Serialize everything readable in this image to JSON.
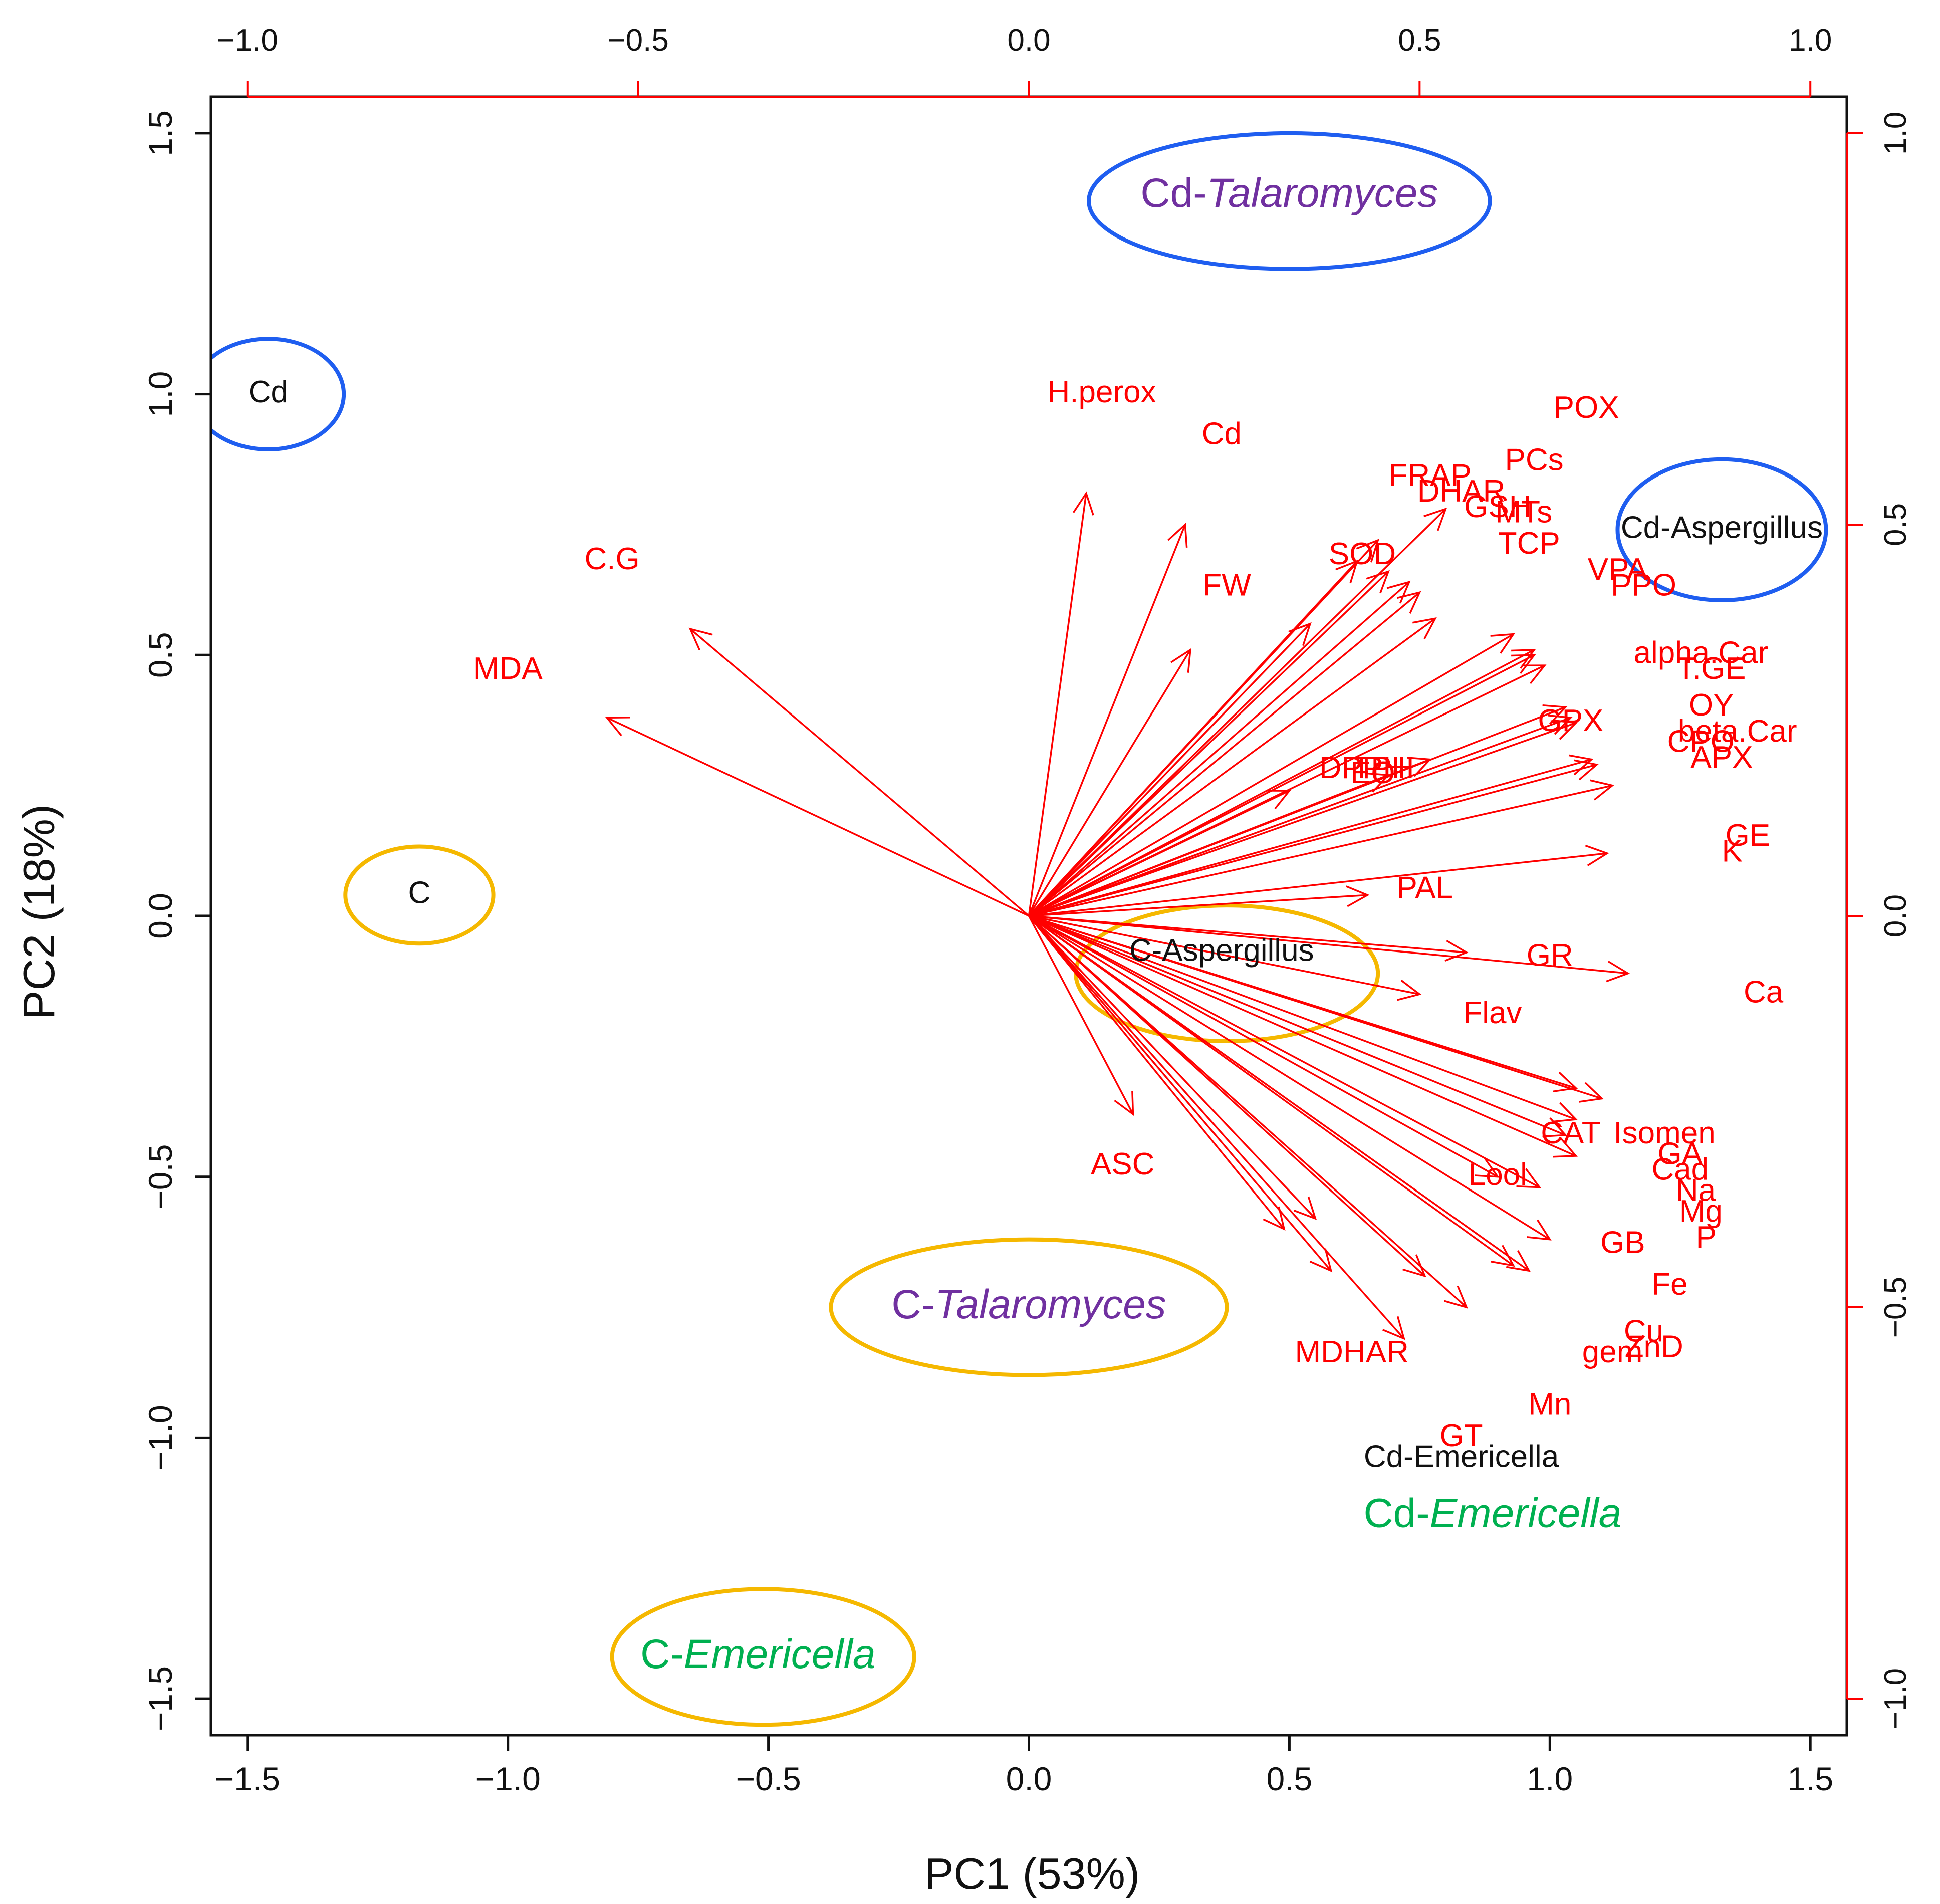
{
  "chart_data": {
    "type": "scatter",
    "subtype": "PCA biplot",
    "xlabel": "PC1 (53%)",
    "ylabel": "PC2 (18%)",
    "xlim": [
      -1.57,
      1.57
    ],
    "ylim": [
      -1.57,
      1.57
    ],
    "x_ticks": [
      -1.5,
      -1.0,
      -0.5,
      0.0,
      0.5,
      1.0,
      1.5
    ],
    "x_tick_labels": [
      "−1.5",
      "−1.0",
      "−0.5",
      "0.0",
      "0.5",
      "1.0",
      "1.5"
    ],
    "y_ticks": [
      -1.5,
      -1.0,
      -0.5,
      0.0,
      0.5,
      1.0,
      1.5
    ],
    "y_tick_labels": [
      "−1.5",
      "−1.0",
      "−0.5",
      "0.0",
      "0.5",
      "1.0",
      "1.5"
    ],
    "top_axis_ticks": [
      -1.0,
      -0.5,
      0.0,
      0.5,
      1.0
    ],
    "top_axis_tick_labels": [
      "−1.0",
      "−0.5",
      "0.0",
      "0.5",
      "1.0"
    ],
    "right_axis_ticks": [
      -1.0,
      -0.5,
      0.0,
      0.5,
      1.0
    ],
    "right_axis_tick_labels": [
      "−1.0",
      "−0.5",
      "0.0",
      "0.5",
      "1.0"
    ],
    "loading_scale": 1.5,
    "scores": [
      {
        "label": "Cd",
        "x": -1.46,
        "y": 1.0
      },
      {
        "label": "C",
        "x": -1.17,
        "y": 0.04
      },
      {
        "label": "C-Aspergillus",
        "x": 0.37,
        "y": -0.07
      },
      {
        "label": "Cd-Aspergillus",
        "x": 1.33,
        "y": 0.74
      },
      {
        "label": "Cd-Emericella",
        "x": 0.83,
        "y": -1.04
      }
    ],
    "group_labels": [
      {
        "prefix": "Cd-",
        "genus": "Talaromyces",
        "x": 0.5,
        "y": 1.38,
        "color": "#7030a0"
      },
      {
        "prefix": "C-",
        "genus": "Talaromyces",
        "x": 0.0,
        "y": -0.75,
        "color": "#7030a0"
      },
      {
        "prefix": "C-",
        "genus": "Emericella",
        "x": -0.52,
        "y": -1.42,
        "color": "#00b050"
      },
      {
        "prefix": "Cd-",
        "genus": "Emericella",
        "x": 0.89,
        "y": -1.15,
        "color": "#00b050"
      }
    ],
    "ellipses": [
      {
        "cx": 0.5,
        "cy": 1.37,
        "rx": 0.385,
        "ry": 0.13,
        "color": "#1f5ef0"
      },
      {
        "cx": -1.46,
        "cy": 1.0,
        "rx": 0.145,
        "ry": 0.106,
        "color": "#1f5ef0"
      },
      {
        "cx": 1.33,
        "cy": 0.74,
        "rx": 0.2,
        "ry": 0.135,
        "color": "#1f5ef0"
      },
      {
        "cx": -1.17,
        "cy": 0.04,
        "rx": 0.142,
        "ry": 0.093,
        "color": "#f5b800"
      },
      {
        "cx": 0.38,
        "cy": -0.11,
        "rx": 0.29,
        "ry": 0.13,
        "color": "#f5b800"
      },
      {
        "cx": 0.0,
        "cy": -0.75,
        "rx": 0.38,
        "ry": 0.13,
        "color": "#f5b800"
      },
      {
        "cx": -0.51,
        "cy": -1.42,
        "rx": 0.29,
        "ry": 0.13,
        "color": "#f5b800"
      }
    ],
    "arrow_color": "#ff0000",
    "loadings": [
      {
        "label": "H.perox",
        "x": 0.11,
        "y": 0.81,
        "lx": 0.14,
        "ly": 1.0
      },
      {
        "label": "Cd",
        "x": 0.3,
        "y": 0.75,
        "lx": 0.37,
        "ly": 0.92
      },
      {
        "label": "FW",
        "x": 0.31,
        "y": 0.51,
        "lx": 0.38,
        "ly": 0.63
      },
      {
        "label": "C.G",
        "x": -0.65,
        "y": 0.55,
        "lx": -0.8,
        "ly": 0.68
      },
      {
        "label": "MDA",
        "x": -0.81,
        "y": 0.38,
        "lx": -1.0,
        "ly": 0.47
      },
      {
        "label": "SOD",
        "x": 0.54,
        "y": 0.56,
        "lx": 0.64,
        "ly": 0.69
      },
      {
        "label": "FRAP",
        "x": 0.63,
        "y": 0.68,
        "lx": 0.77,
        "ly": 0.84
      },
      {
        "label": "DHAR",
        "x": 0.69,
        "y": 0.66,
        "lx": 0.83,
        "ly": 0.81
      },
      {
        "label": "PCs",
        "x": 0.8,
        "y": 0.78,
        "lx": 0.97,
        "ly": 0.87
      },
      {
        "label": "GSH",
        "x": 0.73,
        "y": 0.64,
        "lx": 0.9,
        "ly": 0.78
      },
      {
        "label": "MTs",
        "x": 0.75,
        "y": 0.62,
        "lx": 0.95,
        "ly": 0.77
      },
      {
        "label": "TCP",
        "x": 0.78,
        "y": 0.57,
        "lx": 0.96,
        "ly": 0.71
      },
      {
        "label": "POX",
        "x": 0.67,
        "y": 0.72,
        "lx": 1.07,
        "ly": 0.97
      },
      {
        "label": "VPA",
        "x": 0.93,
        "y": 0.54,
        "lx": 1.13,
        "ly": 0.66
      },
      {
        "label": "PPO",
        "x": 0.97,
        "y": 0.51,
        "lx": 1.18,
        "ly": 0.63
      },
      {
        "label": "alpha.Car",
        "x": 0.97,
        "y": 0.5,
        "lx": 1.29,
        "ly": 0.5
      },
      {
        "label": "T.GE",
        "x": 0.99,
        "y": 0.48,
        "lx": 1.31,
        "ly": 0.47
      },
      {
        "label": "OY",
        "x": 1.03,
        "y": 0.4,
        "lx": 1.31,
        "ly": 0.4
      },
      {
        "label": "beta.Car",
        "x": 1.04,
        "y": 0.38,
        "lx": 1.36,
        "ly": 0.35
      },
      {
        "label": "CPO",
        "x": 1.05,
        "y": 0.37,
        "lx": 1.29,
        "ly": 0.33
      },
      {
        "label": "APX",
        "x": 1.08,
        "y": 0.3,
        "lx": 1.33,
        "ly": 0.3
      },
      {
        "label": "GPX",
        "x": 1.09,
        "y": 0.29,
        "lx": 1.04,
        "ly": 0.37
      },
      {
        "label": "DPPH",
        "x": 0.77,
        "y": 0.3,
        "lx": 0.64,
        "ly": 0.28
      },
      {
        "label": "EO",
        "x": 0.69,
        "y": 0.27,
        "lx": 0.66,
        "ly": 0.27
      },
      {
        "label": "TPH",
        "x": 0.5,
        "y": 0.24,
        "lx": 0.68,
        "ly": 0.28
      },
      {
        "label": "GE",
        "x": 1.12,
        "y": 0.25,
        "lx": 1.38,
        "ly": 0.15
      },
      {
        "label": "K",
        "x": 1.11,
        "y": 0.12,
        "lx": 1.35,
        "ly": 0.12
      },
      {
        "label": "PAL",
        "x": 0.65,
        "y": 0.04,
        "lx": 0.76,
        "ly": 0.05
      },
      {
        "label": "GR",
        "x": 1.15,
        "y": -0.11,
        "lx": 1.0,
        "ly": -0.08
      },
      {
        "label": "Flav",
        "x": 0.84,
        "y": -0.07,
        "lx": 0.89,
        "ly": -0.19
      },
      {
        "label": "Ca",
        "x": 0.75,
        "y": -0.15,
        "lx": 1.41,
        "ly": -0.15
      },
      {
        "label": "CAT",
        "x": 1.05,
        "y": -0.33,
        "lx": 1.04,
        "ly": -0.42
      },
      {
        "label": "Isomen",
        "x": 1.1,
        "y": -0.35,
        "lx": 1.22,
        "ly": -0.42
      },
      {
        "label": "GA",
        "x": 1.05,
        "y": -0.39,
        "lx": 1.25,
        "ly": -0.46
      },
      {
        "label": "Cad",
        "x": 1.03,
        "y": -0.42,
        "lx": 1.25,
        "ly": -0.49
      },
      {
        "label": "Na",
        "x": 1.05,
        "y": -0.46,
        "lx": 1.28,
        "ly": -0.53
      },
      {
        "label": "Mg",
        "x": 0.98,
        "y": -0.52,
        "lx": 1.29,
        "ly": -0.57
      },
      {
        "label": "P",
        "x": 0.9,
        "y": -0.5,
        "lx": 1.3,
        "ly": -0.62
      },
      {
        "label": "Lool",
        "x": 1.0,
        "y": -0.62,
        "lx": 0.9,
        "ly": -0.5
      },
      {
        "label": "GB",
        "x": 0.96,
        "y": -0.68,
        "lx": 1.14,
        "ly": -0.63
      },
      {
        "label": "Fe",
        "x": 0.93,
        "y": -0.67,
        "lx": 1.23,
        "ly": -0.71
      },
      {
        "label": "Cu",
        "x": 0.84,
        "y": -0.75,
        "lx": 1.18,
        "ly": -0.8
      },
      {
        "label": "ZnD",
        "x": 0.72,
        "y": -0.81,
        "lx": 1.2,
        "ly": -0.83
      },
      {
        "label": "gem",
        "x": 0.58,
        "y": -0.68,
        "lx": 1.12,
        "ly": -0.84
      },
      {
        "label": "MDHAR",
        "x": 0.49,
        "y": -0.6,
        "lx": 0.62,
        "ly": -0.84
      },
      {
        "label": "Mn",
        "x": 0.76,
        "y": -0.69,
        "lx": 1.0,
        "ly": -0.94
      },
      {
        "label": "GT",
        "x": 0.55,
        "y": -0.58,
        "lx": 0.83,
        "ly": -1.0
      },
      {
        "label": "ASC",
        "x": 0.2,
        "y": -0.38,
        "lx": 0.18,
        "ly": -0.48
      }
    ]
  }
}
